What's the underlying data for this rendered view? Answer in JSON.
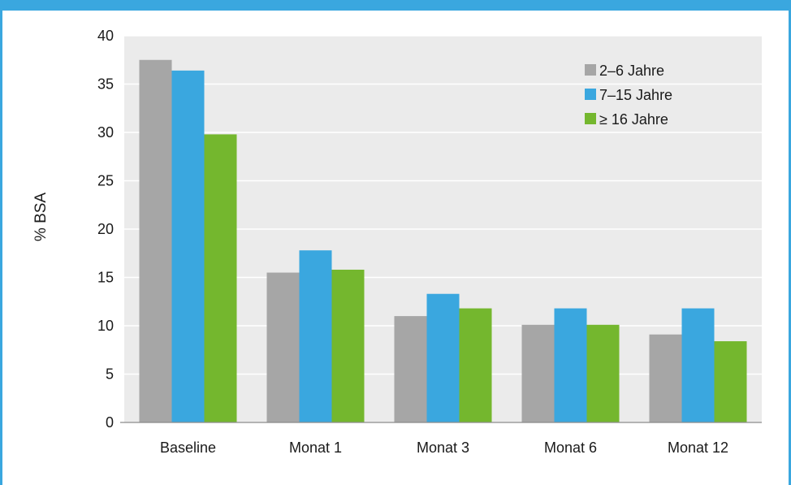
{
  "colors": {
    "frame": "#3aa7df",
    "plot_bg": "#ebebeb",
    "grid": "#ffffff"
  },
  "chart_data": {
    "type": "bar",
    "title": "",
    "xlabel": "",
    "ylabel": "% BSA",
    "ylim": [
      0,
      40
    ],
    "yticks": [
      0,
      5,
      10,
      15,
      20,
      25,
      30,
      35,
      40
    ],
    "grid": true,
    "legend_position": "top-right",
    "categories": [
      "Baseline",
      "Monat 1",
      "Monat 3",
      "Monat 6",
      "Monat 12"
    ],
    "series": [
      {
        "name": "2–6 Jahre",
        "color": "#a6a6a6",
        "values": [
          37.5,
          15.5,
          11.0,
          10.1,
          9.1
        ]
      },
      {
        "name": "7–15 Jahre",
        "color": "#3aa7df",
        "values": [
          36.4,
          17.8,
          13.3,
          11.8,
          11.8
        ]
      },
      {
        "name": "≥ 16 Jahre",
        "color": "#74b72e",
        "values": [
          29.8,
          15.8,
          11.8,
          10.1,
          8.4
        ]
      }
    ]
  }
}
